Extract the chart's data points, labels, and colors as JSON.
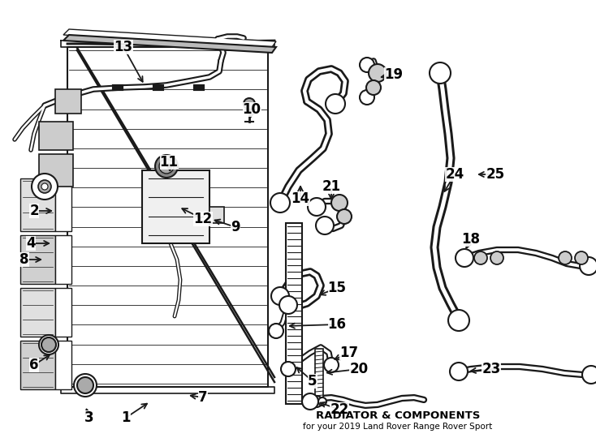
{
  "title": "RADIATOR & COMPONENTS",
  "subtitle": "for your 2019 Land Rover Range Rover Sport",
  "bg": "#ffffff",
  "lc": "#1a1a1a",
  "fig_w": 7.34,
  "fig_h": 5.4,
  "dpi": 100
}
